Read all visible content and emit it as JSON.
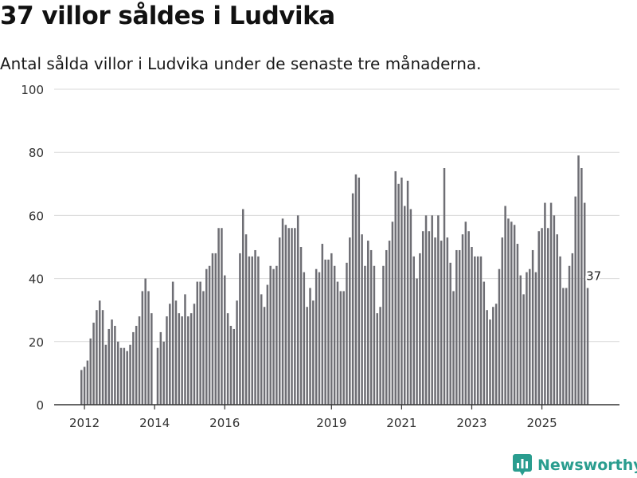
{
  "title": "37 villor såldes i Ludvika",
  "subtitle": "Antal sålda villor i Ludvika under de senaste tre månaderna.",
  "brand": {
    "name": "Newsworthy",
    "icon": "newsworthy-logo-icon",
    "color": "#2a9d8f"
  },
  "colors": {
    "bar": "#6e6e74",
    "highlight": "#2a9d8f",
    "grid": "#d9d9d9"
  },
  "chart_data": {
    "type": "bar",
    "title": "37 villor såldes i Ludvika",
    "xlabel": "",
    "ylabel": "",
    "ylim": [
      0,
      100
    ],
    "yticks": [
      0,
      20,
      40,
      60,
      80,
      100
    ],
    "start": {
      "year": 2012,
      "month": 1
    },
    "period": "monthly (rolling three-month total)",
    "xticks": [
      {
        "label": "2012",
        "index": 1
      },
      {
        "label": "2014",
        "index": 24
      },
      {
        "label": "2016",
        "index": 47
      },
      {
        "label": "2019",
        "index": 82
      },
      {
        "label": "2021",
        "index": 105
      },
      {
        "label": "2023",
        "index": 128
      },
      {
        "label": "2025",
        "index": 151
      }
    ],
    "values": [
      11,
      12,
      14,
      21,
      26,
      30,
      33,
      30,
      19,
      24,
      27,
      25,
      20,
      18,
      18,
      17,
      19,
      23,
      25,
      28,
      36,
      40,
      36,
      29,
      0,
      18,
      23,
      20,
      28,
      32,
      39,
      33,
      29,
      28,
      35,
      28,
      29,
      32,
      39,
      39,
      36,
      43,
      44,
      48,
      48,
      56,
      56,
      41,
      29,
      25,
      24,
      33,
      48,
      62,
      54,
      47,
      47,
      49,
      47,
      35,
      31,
      38,
      44,
      43,
      44,
      53,
      59,
      57,
      56,
      56,
      56,
      60,
      50,
      42,
      31,
      37,
      33,
      43,
      42,
      51,
      46,
      46,
      48,
      44,
      39,
      36,
      36,
      45,
      53,
      67,
      73,
      72,
      54,
      44,
      52,
      49,
      44,
      29,
      31,
      44,
      49,
      52,
      58,
      74,
      70,
      72,
      63,
      71,
      62,
      47,
      40,
      48,
      55,
      60,
      55,
      60,
      53,
      60,
      52,
      75,
      53,
      45,
      36,
      49,
      49,
      54,
      58,
      55,
      50,
      47,
      47,
      47,
      39,
      30,
      27,
      31,
      32,
      43,
      53,
      63,
      59,
      58,
      57,
      51,
      41,
      35,
      42,
      43,
      49,
      42,
      55,
      56,
      64,
      56,
      64,
      60,
      54,
      47,
      37,
      37,
      44,
      48,
      66,
      79,
      75,
      64,
      37
    ],
    "highlight": {
      "index": 168,
      "value": 37,
      "label": "37"
    }
  }
}
